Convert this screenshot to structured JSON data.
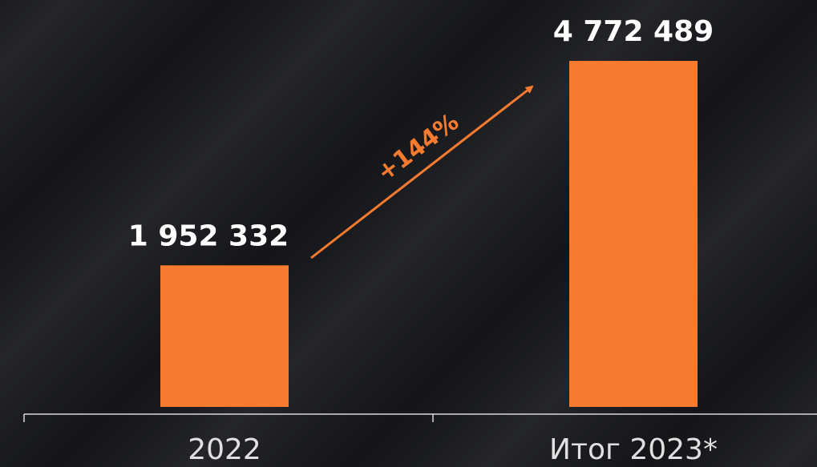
{
  "chart_data": {
    "type": "bar",
    "categories": [
      "2022",
      "Итог 2023*"
    ],
    "values": [
      1952332,
      4772489
    ],
    "value_labels": [
      "1 952 332",
      "4 772 489"
    ],
    "color": "#f47b30",
    "annotation": "+144%"
  }
}
